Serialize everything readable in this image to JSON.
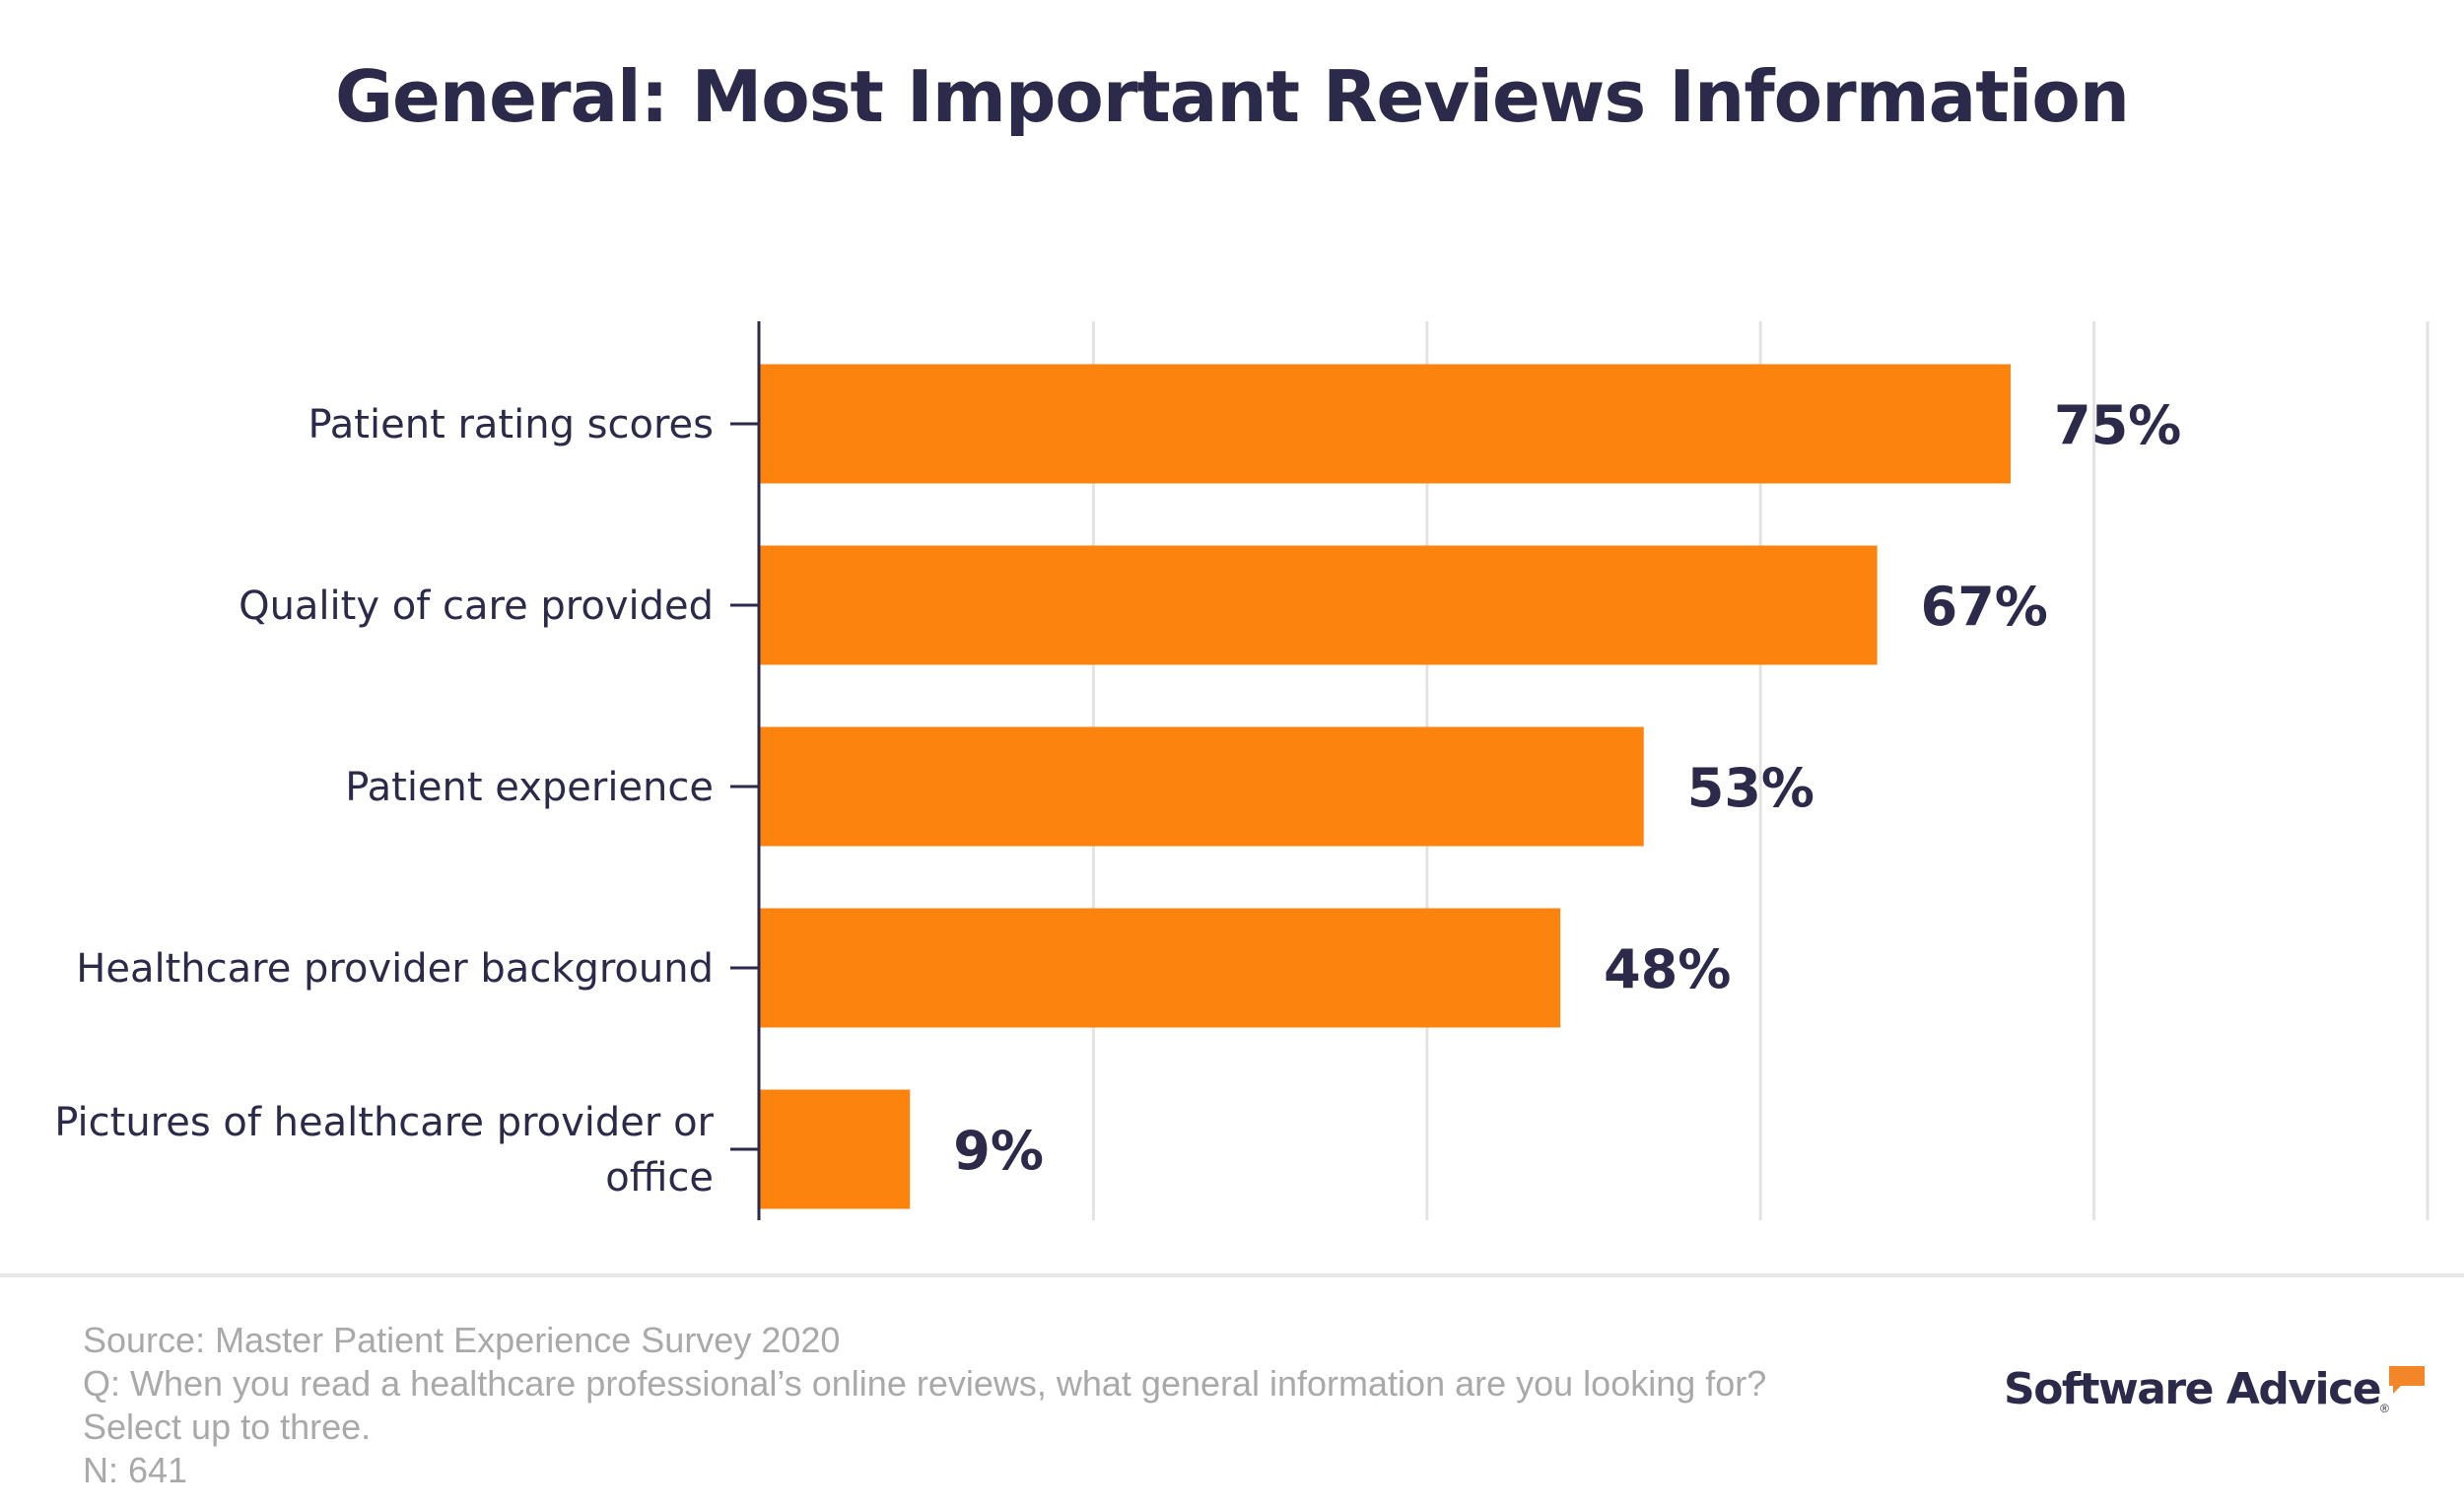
{
  "title": "General: Most Important Reviews Information",
  "chart_data": {
    "type": "bar",
    "orientation": "horizontal",
    "title": "General: Most Important Reviews Information",
    "categories": [
      "Patient rating scores",
      "Quality of care provided",
      "Patient experience",
      "Healthcare provider background",
      "Pictures of healthcare provider or office"
    ],
    "category_lines": [
      [
        "Patient rating scores"
      ],
      [
        "Quality of care provided"
      ],
      [
        "Patient experience"
      ],
      [
        "Healthcare provider background"
      ],
      [
        "Pictures of healthcare provider or",
        "office"
      ]
    ],
    "values": [
      75,
      67,
      53,
      48,
      9
    ],
    "data_labels": [
      "75%",
      "67%",
      "53%",
      "48%",
      "9%"
    ],
    "xlim": [
      0,
      100
    ],
    "gridlines": [
      20,
      40,
      60,
      80,
      100
    ],
    "grid": true,
    "xlabel": "",
    "ylabel": "",
    "bar_color": "#fd830f",
    "text_color": "#2c2a4a",
    "grid_color": "#e3e3e3"
  },
  "footer": {
    "source": "Source: Master Patient Experience Survey 2020",
    "question": "Q: When you read a healthcare professional’s online reviews, what general information are you looking for? Select up to three.",
    "n": "N: 641"
  },
  "logo": {
    "text": "Software Advice",
    "accent_color": "#f4862a"
  }
}
